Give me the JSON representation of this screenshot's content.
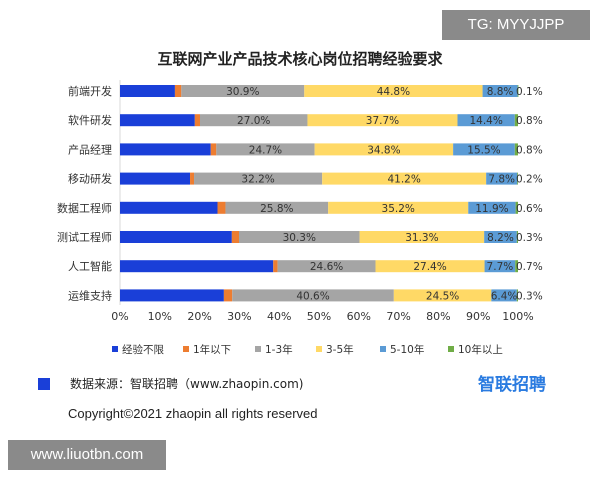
{
  "watermark_tg": "TG: MYYJJPP",
  "watermark_site": "www.liuotbn.com",
  "source": "数据来源：智联招聘（www.zhaopin.com)",
  "logo": "智联招聘",
  "copyright": "Copyright©2021 zhaopin all rights reserved",
  "chart_data": {
    "type": "bar",
    "stacked": true,
    "orientation": "horizontal",
    "title": "互联网产业产品技术核心岗位招聘经验要求",
    "categories": [
      "前端开发",
      "软件研发",
      "产品经理",
      "移动研发",
      "数据工程师",
      "测试工程师",
      "人工智能",
      "运维支持"
    ],
    "xlim": [
      0,
      100
    ],
    "xticks": [
      "0%",
      "10%",
      "20%",
      "30%",
      "40%",
      "50%",
      "60%",
      "70%",
      "80%",
      "90%",
      "100%"
    ],
    "legend_position": "bottom",
    "series": [
      {
        "name": "经验不限",
        "color": "#1a3fd8",
        "values": [
          13.8,
          18.8,
          22.8,
          17.6,
          24.5,
          28.1,
          38.5,
          26.1
        ],
        "labels": [
          "",
          "",
          "",
          "",
          "",
          "",
          "",
          ""
        ]
      },
      {
        "name": "1年以下",
        "color": "#ed7d31",
        "values": [
          1.6,
          1.3,
          1.4,
          1.0,
          2.0,
          1.8,
          1.1,
          2.1
        ],
        "labels": [
          "",
          "",
          "",
          "",
          "",
          "",
          "",
          ""
        ]
      },
      {
        "name": "1-3年",
        "color": "#a5a5a5",
        "values": [
          30.9,
          27.0,
          24.7,
          32.2,
          25.8,
          30.3,
          24.6,
          40.6
        ],
        "labels": [
          "30.9%",
          "27.0%",
          "24.7%",
          "32.2%",
          "25.8%",
          "30.3%",
          "24.6%",
          "40.6%"
        ]
      },
      {
        "name": "3-5年",
        "color": "#ffd966",
        "values": [
          44.8,
          37.7,
          34.8,
          41.2,
          35.2,
          31.3,
          27.4,
          24.5
        ],
        "labels": [
          "44.8%",
          "37.7%",
          "34.8%",
          "41.2%",
          "35.2%",
          "31.3%",
          "27.4%",
          "24.5%"
        ]
      },
      {
        "name": "5-10年",
        "color": "#5b9bd5",
        "values": [
          8.8,
          14.4,
          15.5,
          7.8,
          11.9,
          8.2,
          7.7,
          6.4
        ],
        "labels": [
          "8.8%",
          "14.4%",
          "15.5%",
          "7.8%",
          "11.9%",
          "8.2%",
          "7.7%",
          "6.4%"
        ]
      },
      {
        "name": "10年以上",
        "color": "#70ad47",
        "values": [
          0.1,
          0.8,
          0.8,
          0.2,
          0.6,
          0.3,
          0.7,
          0.3
        ],
        "labels": [
          "0.1%",
          "0.8%",
          "0.8%",
          "0.2%",
          "0.6%",
          "0.3%",
          "0.7%",
          "0.3%"
        ]
      }
    ]
  }
}
